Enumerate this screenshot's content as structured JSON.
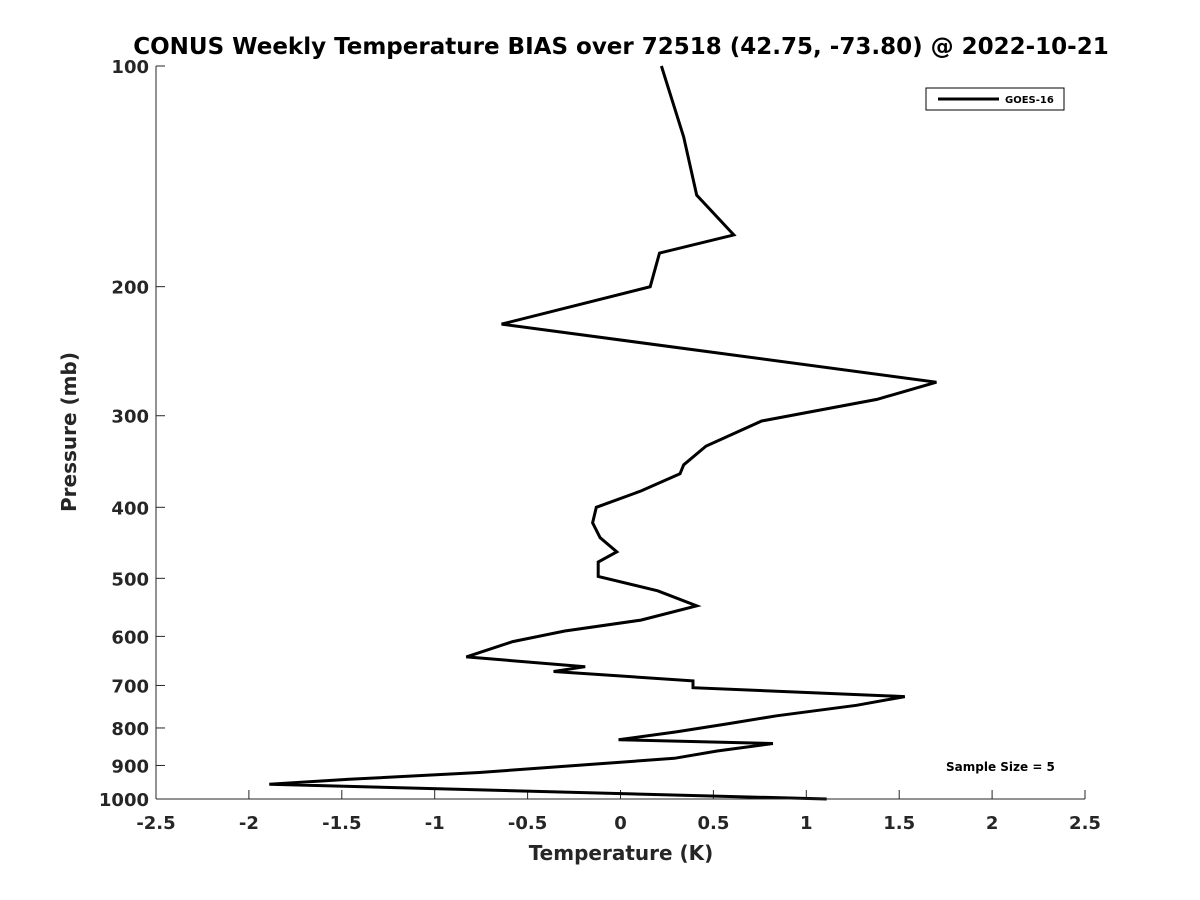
{
  "chart_data": {
    "type": "line",
    "title": "CONUS Weekly Temperature BIAS over 72518 (42.75, -73.80) @ 2022-10-21",
    "xlabel": "Temperature (K)",
    "ylabel": "Pressure (mb)",
    "xlim": [
      -2.5,
      2.5
    ],
    "ylim": [
      100,
      1000
    ],
    "yscale": "log",
    "yreversed": true,
    "xticks": [
      -2.5,
      -2,
      -1.5,
      -1,
      -0.5,
      0,
      0.5,
      1,
      1.5,
      2,
      2.5
    ],
    "xtick_labels": [
      "-2.5",
      "-2",
      "-1.5",
      "-1",
      "-0.5",
      "0",
      "0.5",
      "1",
      "1.5",
      "2",
      "2.5"
    ],
    "yticks": [
      100,
      200,
      300,
      400,
      500,
      600,
      700,
      800,
      900,
      1000
    ],
    "ytick_labels": [
      "100",
      "200",
      "300",
      "400",
      "500",
      "600",
      "700",
      "800",
      "900",
      "1000"
    ],
    "grid": false,
    "legend_position": "top-right",
    "series": [
      {
        "name": "GOES-16",
        "color": "#000000",
        "points": [
          [
            0.22,
            100
          ],
          [
            0.34,
            125
          ],
          [
            0.41,
            150
          ],
          [
            0.61,
            170
          ],
          [
            0.21,
            180
          ],
          [
            0.16,
            200
          ],
          [
            -0.64,
            225
          ],
          [
            1.7,
            270
          ],
          [
            1.38,
            285
          ],
          [
            0.76,
            305
          ],
          [
            0.46,
            330
          ],
          [
            0.34,
            350
          ],
          [
            0.32,
            360
          ],
          [
            0.11,
            380
          ],
          [
            -0.13,
            400
          ],
          [
            -0.15,
            420
          ],
          [
            -0.11,
            440
          ],
          [
            -0.02,
            460
          ],
          [
            -0.12,
            475
          ],
          [
            -0.12,
            497
          ],
          [
            0.2,
            520
          ],
          [
            0.41,
            545
          ],
          [
            0.11,
            570
          ],
          [
            -0.3,
            590
          ],
          [
            -0.58,
            610
          ],
          [
            -0.83,
            640
          ],
          [
            -0.19,
            660
          ],
          [
            -0.36,
            670
          ],
          [
            0.39,
            690
          ],
          [
            0.39,
            705
          ],
          [
            1.53,
            725
          ],
          [
            1.27,
            745
          ],
          [
            0.84,
            770
          ],
          [
            0.57,
            790
          ],
          [
            0.3,
            810
          ],
          [
            -0.01,
            830
          ],
          [
            0.82,
            840
          ],
          [
            0.52,
            860
          ],
          [
            0.29,
            880
          ],
          [
            -0.76,
            920
          ],
          [
            -1.46,
            940
          ],
          [
            -1.89,
            955
          ],
          [
            1.11,
            1000
          ]
        ]
      }
    ],
    "annotation": "Sample Size = 5"
  }
}
